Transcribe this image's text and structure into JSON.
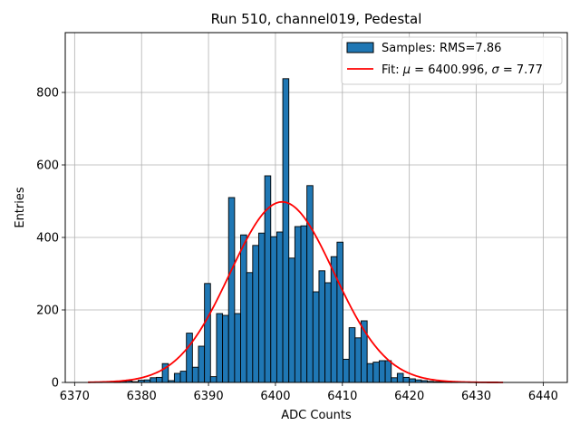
{
  "chart_data": {
    "type": "bar",
    "title": "Run 510, channel019, Pedestal",
    "xlabel": "ADC Counts",
    "ylabel": "Entries",
    "xlim": [
      6368.6,
      6443.6
    ],
    "ylim": [
      0,
      965
    ],
    "xticks": [
      6370,
      6380,
      6390,
      6400,
      6410,
      6420,
      6430,
      6440
    ],
    "yticks": [
      0,
      200,
      400,
      600,
      800
    ],
    "grid": true,
    "legend_position": "top-right",
    "histogram": {
      "name": "Samples: RMS=7.86",
      "color": "#1f77b4",
      "edgecolor": "#000000",
      "bin_width": 0.9,
      "x_start": 6373.2,
      "counts": [
        1,
        0,
        0,
        1,
        3,
        4,
        2,
        6,
        7,
        13,
        14,
        52,
        5,
        25,
        31,
        136,
        42,
        100,
        273,
        16,
        190,
        185,
        510,
        190,
        407,
        303,
        378,
        412,
        570,
        402,
        415,
        838,
        343,
        430,
        432,
        543,
        250,
        308,
        275,
        347,
        387,
        64,
        151,
        123,
        170,
        52,
        56,
        60,
        60,
        13,
        25,
        14,
        10,
        7,
        5,
        3,
        2,
        2,
        1,
        1,
        0,
        0,
        0,
        0,
        1
      ]
    },
    "fit": {
      "name": "Fit: μ = 6400.996, σ = 7.77",
      "mu": 6400.996,
      "sigma": 7.77,
      "amplitude": 498,
      "x_range": [
        6372,
        6434
      ],
      "color": "#ff0000"
    },
    "legend": [
      {
        "label": "Samples: RMS=7.86",
        "kind": "patch"
      },
      {
        "label_prefix": "Fit: ",
        "mu_symbol": "μ",
        "mu_text": " = 6400.996, ",
        "sigma_symbol": "σ",
        "sigma_text": " = 7.77",
        "kind": "line"
      }
    ]
  }
}
